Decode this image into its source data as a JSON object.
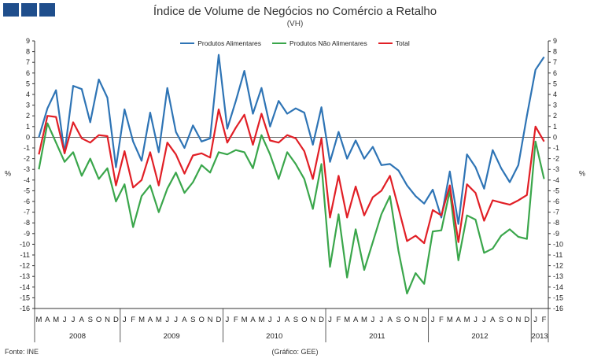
{
  "logo_blocks": 3,
  "chart_data": {
    "type": "line",
    "title": "Índice de Volume de Negócios no Comércio a Retalho",
    "subtitle": "(VH)",
    "ylabel": "%",
    "ylim": [
      -16,
      9
    ],
    "yticks": [
      9,
      8,
      7,
      6,
      5,
      4,
      3,
      2,
      1,
      0,
      -1,
      -2,
      -3,
      -4,
      -5,
      -6,
      -7,
      -8,
      -9,
      -10,
      -11,
      -12,
      -13,
      -14,
      -15,
      -16
    ],
    "grid": false,
    "legend_position": "top-center",
    "month_labels": [
      "M",
      "A",
      "M",
      "J",
      "J",
      "A",
      "S",
      "O",
      "N",
      "D",
      "J",
      "F",
      "M",
      "A",
      "M",
      "J",
      "J",
      "A",
      "S",
      "O",
      "N",
      "D",
      "J",
      "F",
      "M",
      "A",
      "M",
      "J",
      "J",
      "A",
      "S",
      "O",
      "N",
      "D",
      "J",
      "F",
      "M",
      "A",
      "M",
      "J",
      "J",
      "A",
      "S",
      "O",
      "N",
      "D",
      "J",
      "F",
      "M",
      "A",
      "M",
      "J",
      "J",
      "A",
      "S",
      "O",
      "N",
      "D",
      "J",
      "F"
    ],
    "years": [
      {
        "label": "2008",
        "start": 0,
        "end": 10
      },
      {
        "label": "2009",
        "start": 10,
        "end": 22
      },
      {
        "label": "2010",
        "start": 22,
        "end": 34
      },
      {
        "label": "2011",
        "start": 34,
        "end": 46
      },
      {
        "label": "2012",
        "start": 46,
        "end": 58
      },
      {
        "label": "2013",
        "start": 58,
        "end": 60
      }
    ],
    "series": [
      {
        "name": "Produtos Alimentares",
        "color": "#2e74b5",
        "values": [
          0.0,
          2.7,
          4.4,
          -1.5,
          4.8,
          4.5,
          1.4,
          5.4,
          3.7,
          -2.8,
          2.6,
          -0.4,
          -2.2,
          2.3,
          -1.4,
          4.6,
          0.5,
          -1.0,
          1.1,
          -0.4,
          -0.1,
          7.7,
          0.8,
          3.4,
          6.2,
          2.2,
          4.6,
          1.0,
          3.4,
          2.2,
          2.7,
          2.3,
          -0.7,
          2.8,
          -2.3,
          0.5,
          -2.0,
          -0.3,
          -2.0,
          -0.9,
          -2.6,
          -2.5,
          -3.1,
          -4.5,
          -5.5,
          -6.2,
          -4.9,
          -7.5,
          -3.2,
          -8.1,
          -1.6,
          -2.8,
          -4.8,
          -1.2,
          -2.9,
          -4.2,
          -2.6,
          2.0,
          6.3,
          7.5
        ]
      },
      {
        "name": "Produtos Não Alimentares",
        "color": "#3aa64b",
        "values": [
          -3.0,
          1.3,
          -0.5,
          -2.3,
          -1.4,
          -3.6,
          -2.0,
          -3.9,
          -2.9,
          -6.0,
          -4.4,
          -8.4,
          -5.5,
          -4.5,
          -7.0,
          -4.8,
          -3.3,
          -5.2,
          -4.2,
          -2.6,
          -3.3,
          -1.4,
          -1.6,
          -1.2,
          -1.4,
          -2.9,
          0.2,
          -1.6,
          -3.9,
          -1.4,
          -2.5,
          -3.9,
          -6.7,
          -2.5,
          -12.1,
          -7.2,
          -13.1,
          -8.6,
          -12.4,
          -9.8,
          -7.2,
          -5.5,
          -10.6,
          -14.6,
          -12.7,
          -13.7,
          -8.8,
          -8.7,
          -5.0,
          -11.5,
          -7.3,
          -7.7,
          -10.8,
          -10.4,
          -9.2,
          -8.6,
          -9.3,
          -9.5,
          -0.4,
          -3.9
        ]
      },
      {
        "name": "Total",
        "color": "#e11f26",
        "values": [
          -1.6,
          2.0,
          1.9,
          -1.5,
          1.4,
          -0.1,
          -0.5,
          0.2,
          0.1,
          -4.5,
          -1.3,
          -4.7,
          -4.0,
          -1.4,
          -4.5,
          -0.5,
          -1.6,
          -3.4,
          -1.7,
          -1.5,
          -1.9,
          2.6,
          -0.5,
          0.9,
          2.1,
          -0.7,
          2.2,
          -0.3,
          -0.5,
          0.2,
          -0.1,
          -1.3,
          -3.9,
          -0.1,
          -7.5,
          -3.6,
          -7.5,
          -4.6,
          -7.3,
          -5.6,
          -5.0,
          -3.6,
          -6.6,
          -9.7,
          -9.2,
          -9.9,
          -6.8,
          -7.3,
          -4.5,
          -9.8,
          -4.4,
          -5.2,
          -7.8,
          -5.9,
          -6.1,
          -6.3,
          -5.9,
          -5.4,
          1.0,
          -0.4
        ]
      }
    ]
  },
  "footer": {
    "source": "Fonte: INE",
    "credit": "(Gráfico: GEE)"
  }
}
